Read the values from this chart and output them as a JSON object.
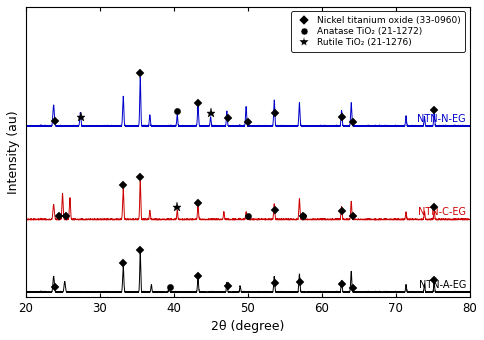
{
  "xlabel": "2θ (degree)",
  "ylabel": "Intensity (au)",
  "xlim": [
    20,
    80
  ],
  "bg_color": "#ffffff",
  "colors": {
    "NTN-A-EG": "#000000",
    "NTN-C-EG": "#cc0000",
    "NTN-N-EG": "#0000cc"
  },
  "offsets": {
    "NTN-A-EG": 0.0,
    "NTN-C-EG": 1.4,
    "NTN-N-EG": 3.2
  },
  "legend": {
    "diamond": "Nickel titanium oxide (33-0960)",
    "circle": "Anatase TiO₂ (21-1272)",
    "star": "Rutile TiO₂ (21-1276)"
  },
  "marker_positions": {
    "NTN-A-EG": {
      "diamond": [
        24.0,
        33.2,
        35.5,
        43.3,
        47.3,
        53.7,
        57.1,
        62.8,
        64.2,
        75.2
      ],
      "circle": [
        39.5
      ],
      "star": []
    },
    "NTN-C-EG": {
      "diamond": [
        24.5,
        25.5,
        33.2,
        35.5,
        43.3,
        53.7,
        57.5,
        62.8,
        64.2,
        75.2
      ],
      "circle": [
        50.0,
        57.5
      ],
      "star": [
        40.5
      ]
    },
    "NTN-N-EG": {
      "diamond": [
        24.0,
        35.5,
        43.3,
        47.3,
        50.0,
        53.7,
        62.8,
        64.2,
        75.2
      ],
      "circle": [
        40.5
      ],
      "star": [
        27.5,
        45.0
      ]
    }
  },
  "peaks": {
    "NTN-A-EG": {
      "positions": [
        23.8,
        25.3,
        33.2,
        35.5,
        37.0,
        39.4,
        43.3,
        47.2,
        49.0,
        53.6,
        57.0,
        62.7,
        64.0,
        71.4,
        73.9,
        75.2
      ],
      "heights": [
        0.3,
        0.2,
        0.5,
        0.75,
        0.15,
        0.12,
        0.25,
        0.18,
        0.12,
        0.3,
        0.35,
        0.22,
        0.4,
        0.15,
        0.15,
        0.18
      ],
      "widths": [
        0.22,
        0.22,
        0.18,
        0.16,
        0.15,
        0.15,
        0.17,
        0.15,
        0.15,
        0.17,
        0.17,
        0.17,
        0.17,
        0.15,
        0.15,
        0.15
      ]
    },
    "NTN-C-EG": {
      "positions": [
        23.8,
        25.0,
        26.0,
        33.2,
        35.5,
        36.8,
        40.5,
        43.3,
        46.8,
        49.8,
        53.6,
        57.0,
        62.7,
        64.0,
        71.4,
        73.9,
        75.2
      ],
      "heights": [
        0.28,
        0.5,
        0.42,
        0.6,
        0.75,
        0.18,
        0.18,
        0.25,
        0.15,
        0.15,
        0.3,
        0.4,
        0.25,
        0.35,
        0.15,
        0.15,
        0.18
      ],
      "widths": [
        0.22,
        0.18,
        0.18,
        0.18,
        0.16,
        0.15,
        0.15,
        0.17,
        0.15,
        0.15,
        0.17,
        0.17,
        0.17,
        0.17,
        0.15,
        0.15,
        0.15
      ]
    },
    "NTN-N-EG": {
      "positions": [
        23.8,
        27.4,
        33.2,
        35.5,
        36.8,
        40.5,
        43.3,
        45.0,
        47.2,
        49.8,
        53.6,
        57.0,
        62.7,
        64.0,
        71.4,
        73.9,
        75.2
      ],
      "heights": [
        0.4,
        0.25,
        0.58,
        0.95,
        0.22,
        0.22,
        0.38,
        0.18,
        0.28,
        0.38,
        0.5,
        0.45,
        0.3,
        0.45,
        0.2,
        0.17,
        0.25
      ],
      "widths": [
        0.22,
        0.18,
        0.18,
        0.16,
        0.15,
        0.15,
        0.17,
        0.15,
        0.15,
        0.17,
        0.17,
        0.17,
        0.17,
        0.17,
        0.15,
        0.15,
        0.15
      ]
    }
  }
}
